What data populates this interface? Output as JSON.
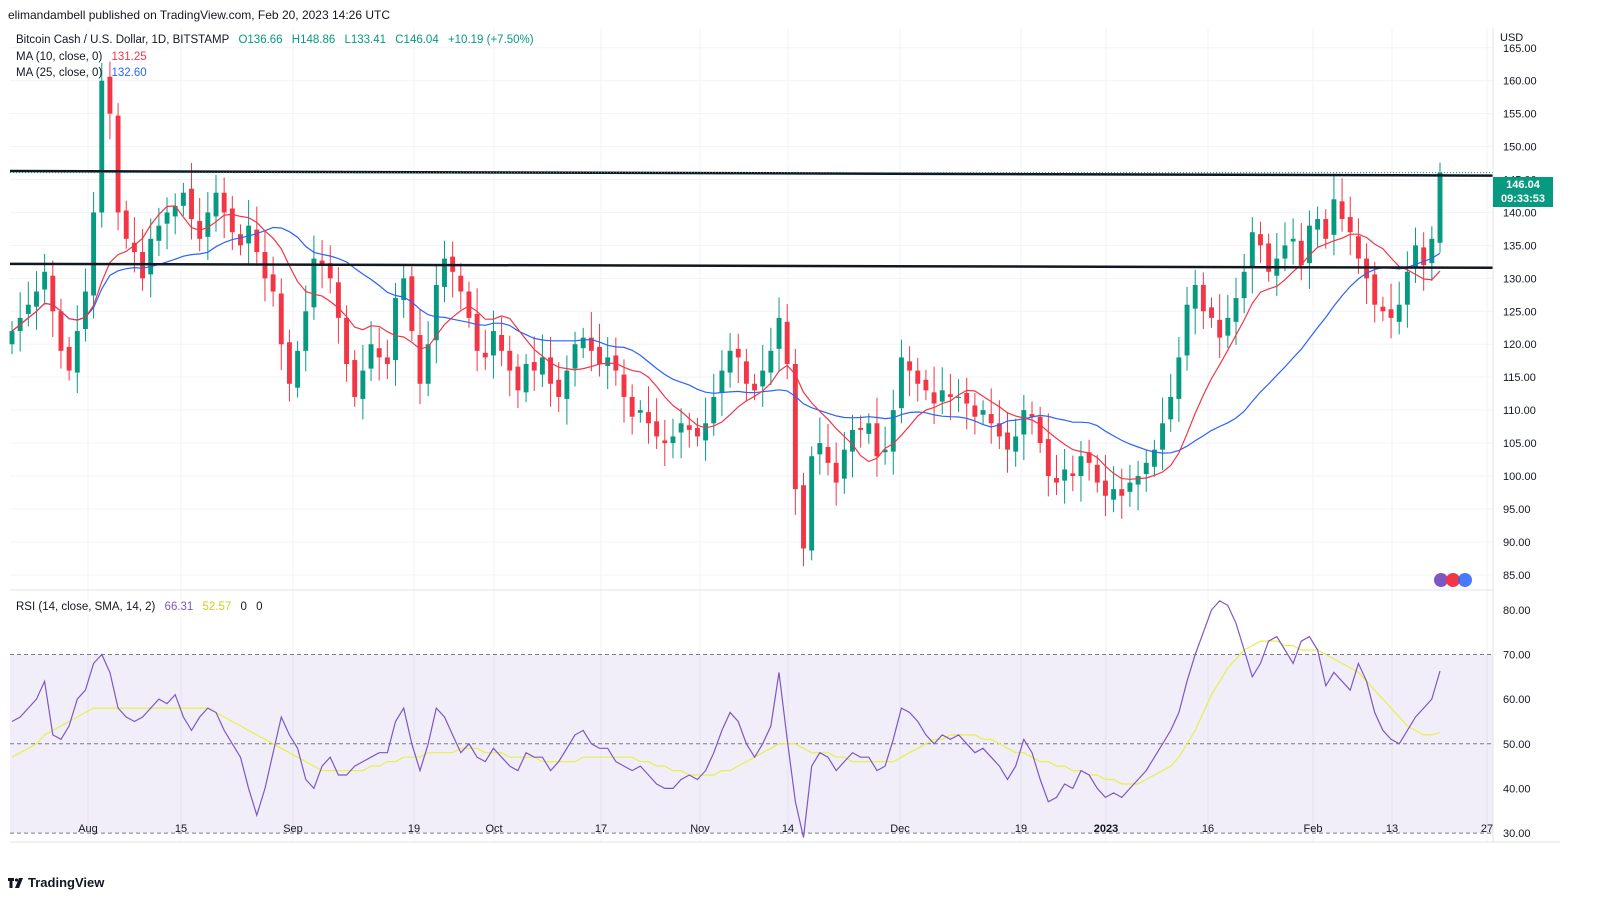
{
  "publisher_line": "elimandambell published on TradingView.com, Feb 20, 2023 14:26 UTC",
  "main_legend": {
    "symbol": "Bitcoin Cash / U.S. Dollar, 1D, BITSTAMP",
    "open": "O136.66",
    "high": "H148.86",
    "low": "L133.41",
    "close": "C146.04",
    "change": "+10.19 (+7.50%)",
    "ma10_label": "MA (10, close, 0)",
    "ma10_value": "131.25",
    "ma25_label": "MA (25, close, 0)",
    "ma25_value": "132.60"
  },
  "rsi_legend": {
    "label": "RSI (14, close, SMA, 14, 2)",
    "rsi_value": "66.31",
    "sma_value": "52.57",
    "extra1": "0",
    "extra2": "0"
  },
  "price_tag": {
    "price": "146.04",
    "countdown": "09:33:53"
  },
  "currency": "USD",
  "brand": "TradingView",
  "colors": {
    "up": "#089981",
    "down": "#f23645",
    "ma10": "#f23645",
    "ma25": "#2962ff",
    "rsi": "#7e57c2",
    "rsi_sma": "#e5f04a",
    "rsi_band": "#7e57c2",
    "level": "#131722"
  },
  "chart_data": [
    {
      "type": "candlestick",
      "title": "Bitcoin Cash / U.S. Dollar, 1D, BITSTAMP",
      "ylabel": "USD",
      "ylim": [
        83,
        168
      ],
      "y_ticks": [
        "165.00",
        "160.00",
        "155.00",
        "150.00",
        "145.00",
        "140.00",
        "135.00",
        "130.00",
        "125.00",
        "120.00",
        "115.00",
        "110.00",
        "105.00",
        "100.00",
        "95.00",
        "90.00",
        "85.00"
      ],
      "x_ticks": [
        "Aug",
        "15",
        "Sep",
        "19",
        "Oct",
        "17",
        "Nov",
        "14",
        "Dec",
        "19",
        "2023",
        "16",
        "Feb",
        "13",
        "27"
      ],
      "horizontal_levels": [
        {
          "from": 146.3,
          "to": 145.6
        },
        {
          "from": 132.2,
          "to": 131.6
        }
      ],
      "last_close": 146.04,
      "closes": [
        122,
        124,
        126,
        128,
        131,
        125,
        119,
        116,
        122,
        128,
        140,
        160,
        155,
        140,
        136,
        134,
        130,
        136,
        138,
        140,
        141,
        143,
        139,
        136,
        140,
        143,
        140,
        137,
        135,
        138,
        134,
        130,
        128,
        120,
        114,
        119,
        125,
        133,
        132,
        130,
        124,
        117,
        112,
        116,
        120,
        118,
        117,
        127,
        130,
        122,
        114,
        120,
        129,
        133,
        131,
        128,
        124,
        119,
        118,
        122,
        119,
        116,
        113,
        117,
        116,
        118,
        114,
        112,
        116,
        120,
        121,
        119,
        117,
        118,
        116,
        112,
        109,
        110,
        108,
        106,
        105,
        106,
        108,
        107,
        106,
        108,
        112,
        116,
        119,
        118,
        114,
        113,
        116,
        119,
        124,
        117,
        98,
        89,
        103,
        105,
        102,
        99,
        104,
        107,
        107,
        108,
        103,
        104,
        110,
        118,
        116,
        114,
        113,
        111,
        113,
        112,
        112,
        111,
        109,
        110,
        108,
        106,
        104,
        106,
        110,
        109,
        105,
        100,
        99,
        101,
        100,
        103,
        102,
        99,
        97,
        98,
        97,
        99,
        100,
        102,
        104,
        108,
        112,
        118,
        126,
        129,
        125,
        124,
        121,
        124,
        127,
        131,
        137,
        135,
        131,
        133,
        135,
        136,
        132,
        138,
        139,
        136,
        142,
        139,
        137,
        133,
        130,
        126,
        125,
        124,
        126,
        131,
        135,
        132,
        136,
        146.04
      ],
      "ma10_last": 131.25,
      "ma25_last": 132.6
    },
    {
      "type": "line",
      "title": "RSI (14, close, SMA, 14, 2)",
      "ylim": [
        28,
        84
      ],
      "y_ticks": [
        "80.00",
        "70.00",
        "60.00",
        "50.00",
        "40.00",
        "30.00"
      ],
      "band": [
        30,
        70
      ],
      "midline": 50,
      "series": [
        {
          "name": "RSI",
          "values": [
            55,
            56,
            58,
            60,
            64,
            52,
            51,
            54,
            60,
            62,
            68,
            70,
            66,
            58,
            56,
            55,
            56,
            58,
            60,
            59,
            61,
            56,
            53,
            56,
            58,
            57,
            53,
            50,
            47,
            40,
            34,
            40,
            48,
            56,
            52,
            49,
            42,
            40,
            45,
            47,
            43,
            43,
            45,
            46,
            47,
            48,
            48,
            55,
            58,
            50,
            44,
            50,
            58,
            56,
            52,
            48,
            50,
            47,
            46,
            49,
            47,
            45,
            44,
            48,
            47,
            47,
            44,
            46,
            49,
            52,
            53,
            50,
            49,
            49,
            46,
            45,
            44,
            45,
            43,
            41,
            40,
            40,
            42,
            43,
            42,
            44,
            48,
            53,
            57,
            55,
            50,
            47,
            50,
            54,
            66,
            51,
            37,
            29,
            45,
            48,
            47,
            44,
            46,
            48,
            47,
            47,
            44,
            45,
            51,
            58,
            57,
            55,
            52,
            50,
            52,
            51,
            52,
            50,
            48,
            49,
            47,
            45,
            42,
            45,
            51,
            48,
            42,
            37,
            38,
            41,
            40,
            44,
            43,
            40,
            38,
            39,
            38,
            40,
            42,
            44,
            47,
            50,
            53,
            57,
            64,
            70,
            75,
            80,
            82,
            81,
            77,
            71,
            65,
            68,
            73,
            74,
            71,
            68,
            73,
            74,
            71,
            63,
            66,
            64,
            62,
            68,
            64,
            57,
            53,
            51,
            50,
            53,
            56,
            58,
            60,
            66.31
          ]
        },
        {
          "name": "SMA",
          "values": [
            47,
            48,
            49,
            50,
            52,
            53,
            54,
            55,
            56,
            57,
            58,
            58,
            58,
            58,
            58,
            58,
            58,
            58,
            58,
            58,
            58,
            58,
            58,
            58,
            58,
            57,
            56,
            55,
            54,
            53,
            52,
            51,
            50,
            49,
            48,
            47,
            46,
            45,
            44,
            44,
            44,
            44,
            44,
            44,
            45,
            45,
            46,
            46,
            47,
            47,
            47,
            48,
            48,
            48,
            48,
            49,
            49,
            49,
            48,
            48,
            48,
            47,
            47,
            47,
            47,
            46,
            46,
            46,
            46,
            46,
            47,
            47,
            47,
            47,
            47,
            47,
            47,
            46,
            46,
            45,
            45,
            44,
            44,
            43,
            43,
            43,
            43,
            44,
            44,
            45,
            46,
            47,
            48,
            49,
            50,
            50,
            50,
            49,
            48,
            48,
            48,
            47,
            47,
            46,
            46,
            46,
            46,
            46,
            46,
            47,
            48,
            49,
            50,
            51,
            51,
            52,
            52,
            52,
            52,
            51,
            51,
            50,
            49,
            48,
            48,
            47,
            46,
            46,
            45,
            45,
            44,
            44,
            43,
            43,
            42,
            42,
            41,
            41,
            41,
            42,
            43,
            44,
            45,
            47,
            50,
            53,
            57,
            61,
            64,
            67,
            69,
            71,
            72,
            73,
            73,
            73,
            72,
            72,
            71,
            71,
            71,
            70,
            69,
            68,
            67,
            66,
            64,
            62,
            60,
            58,
            56,
            54,
            53,
            52,
            52,
            52.57
          ]
        }
      ]
    }
  ]
}
